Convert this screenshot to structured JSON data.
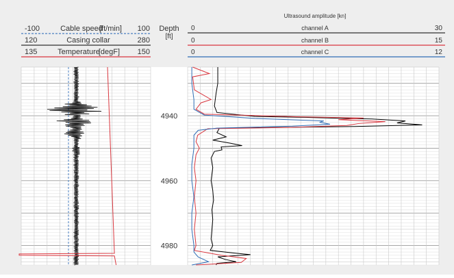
{
  "chart_data": {
    "type": "line",
    "depth_track": {
      "label": "Depth",
      "unit": "[ft]",
      "tick_labels": [
        "4940",
        "4960",
        "4980"
      ]
    },
    "depth_range": [
      4925,
      4986
    ],
    "left_track": {
      "curves": [
        {
          "name": "Cable speed",
          "unit": "[ft/min]",
          "min": -100,
          "max": 100,
          "color": "#4a7fc1",
          "style": "dashed",
          "min_label": "-100",
          "max_label": "100"
        },
        {
          "name": "Casing collar",
          "unit": "",
          "min": 120,
          "max": 280,
          "color": "#000000",
          "style": "solid",
          "min_label": "120",
          "max_label": "280"
        },
        {
          "name": "Temperature",
          "unit": "[degF]",
          "min": 135,
          "max": 150,
          "color": "#d9363e",
          "style": "solid",
          "min_label": "135",
          "max_label": "150"
        }
      ],
      "cable_speed_values": [
        [
          4925,
          -27
        ],
        [
          4986,
          -27
        ]
      ],
      "temperature_values": [
        [
          4925,
          145.0
        ],
        [
          4982.4,
          145.8
        ],
        [
          4982.6,
          132.0
        ],
        [
          4983.0,
          132.0
        ],
        [
          4983.2,
          145.8
        ],
        [
          4986,
          146.0
        ]
      ],
      "casing_collar_baseline": 188,
      "casing_collar_anomalies": [
        {
          "depth": 4934,
          "half_width": 6
        },
        {
          "depth": 4938,
          "half_width": 64
        },
        {
          "depth": 4942,
          "half_width": 40
        },
        {
          "depth": 4945.5,
          "half_width": 22
        },
        {
          "depth": 4950.5,
          "half_width": 12
        }
      ]
    },
    "right_track": {
      "title": "Ultrasound amplitude [kn]",
      "channels": [
        {
          "name": "channel A",
          "min": 0,
          "max": 30,
          "color": "#000000",
          "min_label": "0",
          "max_label": "30",
          "values": [
            [
              4925,
              3.6
            ],
            [
              4930,
              3.6
            ],
            [
              4933,
              3.4
            ],
            [
              4937,
              3.2
            ],
            [
              4939,
              3.5
            ],
            [
              4940.2,
              8
            ],
            [
              4940.5,
              14
            ],
            [
              4941,
              22
            ],
            [
              4941.6,
              26
            ],
            [
              4942.2,
              25
            ],
            [
              4942.8,
              28
            ],
            [
              4943.3,
              20
            ],
            [
              4943.8,
              3.8
            ],
            [
              4945.2,
              3.5
            ],
            [
              4946.5,
              4.6
            ],
            [
              4947.5,
              3.0
            ],
            [
              4948.5,
              5.2
            ],
            [
              4949.2,
              6.5
            ],
            [
              4949.6,
              4.0
            ],
            [
              4950.5,
              4.1
            ],
            [
              4951.0,
              3.2
            ],
            [
              4953,
              2.8
            ],
            [
              4956,
              3.0
            ],
            [
              4960,
              2.8
            ],
            [
              4963,
              3.0
            ],
            [
              4966,
              3.1
            ],
            [
              4969,
              2.9
            ],
            [
              4972,
              3.0
            ],
            [
              4975,
              2.9
            ],
            [
              4978,
              2.8
            ],
            [
              4980,
              3.0
            ],
            [
              4981.5,
              2.7
            ],
            [
              4982.3,
              5.5
            ],
            [
              4982.8,
              7.5
            ],
            [
              4983.5,
              3.6
            ],
            [
              4984.3,
              4.5
            ],
            [
              4985,
              5.8
            ],
            [
              4985.5,
              3.5
            ],
            [
              4986,
              3.4
            ]
          ]
        },
        {
          "name": "channel B",
          "min": 0,
          "max": 15,
          "color": "#d9363e",
          "min_label": "0",
          "max_label": "15",
          "values": [
            [
              4925,
              0.3
            ],
            [
              4927,
              1.3
            ],
            [
              4928,
              0.3
            ],
            [
              4932,
              0.4
            ],
            [
              4935,
              1.4
            ],
            [
              4936,
              0.8
            ],
            [
              4938,
              0.5
            ],
            [
              4939.5,
              1.0
            ],
            [
              4940.3,
              6.5
            ],
            [
              4940.7,
              10.5
            ],
            [
              4941.2,
              9
            ],
            [
              4941.8,
              11.8
            ],
            [
              4942.4,
              10.2
            ],
            [
              4943,
              9.5
            ],
            [
              4943.6,
              6.0
            ],
            [
              4944.0,
              1.2
            ],
            [
              4946,
              0.6
            ],
            [
              4948,
              0.5
            ],
            [
              4950,
              0.7
            ],
            [
              4952,
              0.5
            ],
            [
              4956,
              0.4
            ],
            [
              4960,
              0.5
            ],
            [
              4965,
              0.4
            ],
            [
              4970,
              0.5
            ],
            [
              4975,
              0.4
            ],
            [
              4980,
              0.5
            ],
            [
              4981.5,
              0.4
            ],
            [
              4983,
              2.0
            ],
            [
              4984,
              3.5
            ],
            [
              4985.2,
              3.2
            ],
            [
              4986,
              0.5
            ]
          ]
        },
        {
          "name": "channel C",
          "min": 0,
          "max": 12,
          "color": "#2f6db5",
          "min_label": "0",
          "max_label": "12",
          "values": [
            [
              4925,
              0.2
            ],
            [
              4930,
              0.2
            ],
            [
              4935,
              0.3
            ],
            [
              4938,
              0.3
            ],
            [
              4939.8,
              0.8
            ],
            [
              4940.8,
              3.2
            ],
            [
              4941.2,
              4.8
            ],
            [
              4941.6,
              6.5
            ],
            [
              4942.0,
              6.3
            ],
            [
              4942.6,
              6.8
            ],
            [
              4943.2,
              5.0
            ],
            [
              4943.8,
              1.4
            ],
            [
              4944.5,
              0.5
            ],
            [
              4946,
              0.3
            ],
            [
              4950,
              0.3
            ],
            [
              4955,
              0.2
            ],
            [
              4960,
              0.2
            ],
            [
              4965,
              0.3
            ],
            [
              4970,
              0.2
            ],
            [
              4975,
              0.2
            ],
            [
              4980,
              0.3
            ],
            [
              4982,
              0.3
            ],
            [
              4983.5,
              0.5
            ],
            [
              4985,
              1.0
            ],
            [
              4986,
              0.2
            ]
          ]
        }
      ]
    }
  }
}
